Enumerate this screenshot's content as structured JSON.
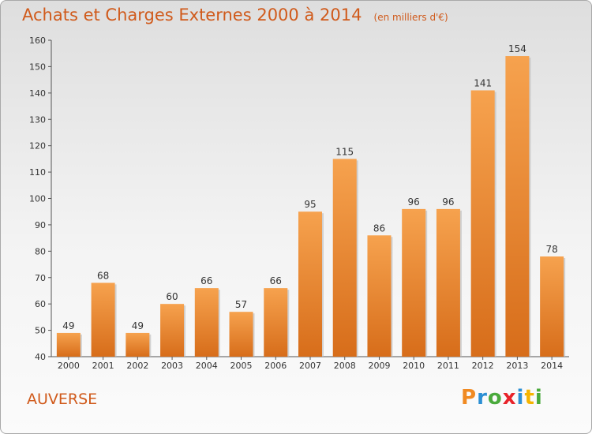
{
  "header": {
    "title": "Achats et Charges Externes 2000 à 2014",
    "unit": "(en milliers d'€)"
  },
  "footer": {
    "commune": "AUVERSE",
    "logo_letters": [
      "P",
      "r",
      "o",
      "x",
      "i",
      "t",
      "i"
    ]
  },
  "colors": {
    "accent": "#d05a1b",
    "bar_top": "#f6a24e",
    "bar_bottom": "#d76d1a",
    "logo": [
      "#f08a22",
      "#2c8fd4",
      "#4aaa3c",
      "#e8232a",
      "#2c8fd4",
      "#f5b400",
      "#4aaa3c"
    ]
  },
  "chart_data": {
    "type": "bar",
    "categories": [
      "2000",
      "2001",
      "2002",
      "2003",
      "2004",
      "2005",
      "2006",
      "2007",
      "2008",
      "2009",
      "2010",
      "2011",
      "2012",
      "2013",
      "2014"
    ],
    "values": [
      49,
      68,
      49,
      60,
      66,
      57,
      66,
      95,
      115,
      86,
      96,
      96,
      141,
      154,
      78
    ],
    "ylim": [
      40,
      160
    ],
    "yticks": [
      40,
      50,
      60,
      70,
      80,
      90,
      100,
      110,
      120,
      130,
      140,
      150,
      160
    ],
    "grid": false,
    "data_labels": true
  }
}
